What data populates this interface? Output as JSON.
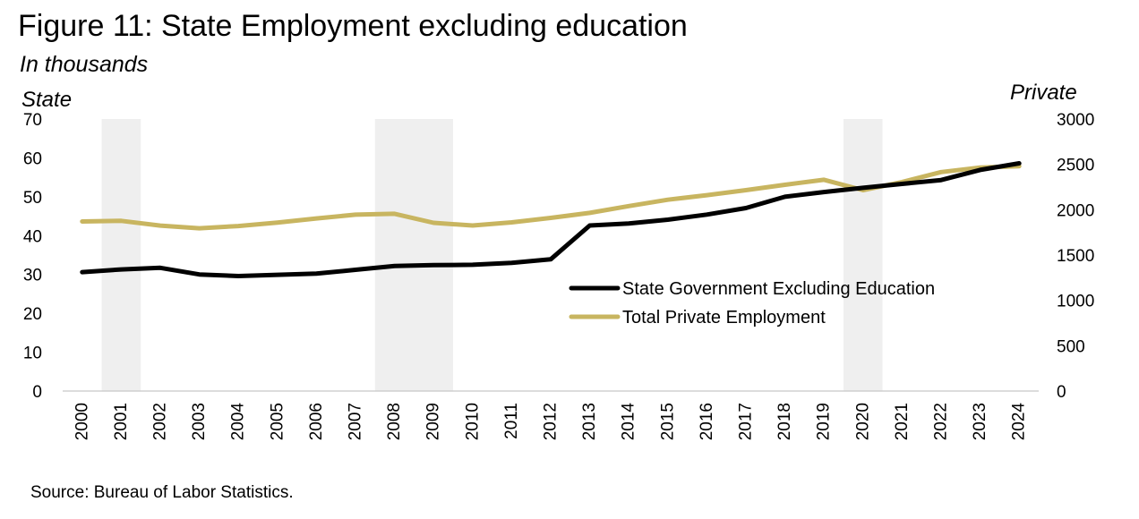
{
  "chart_data": {
    "type": "line",
    "title": "Figure 11: State Employment excluding education",
    "subtitle": "In thousands",
    "y_left_label": "State",
    "y_right_label": "Private",
    "ylim_left": [
      0,
      70
    ],
    "ylim_right": [
      0,
      3000
    ],
    "yticks_left": [
      "0",
      "10",
      "20",
      "30",
      "40",
      "50",
      "60",
      "70"
    ],
    "yticks_right": [
      "0",
      "500",
      "1000",
      "1500",
      "2000",
      "2500",
      "3000"
    ],
    "x": [
      "2000",
      "2001",
      "2002",
      "2003",
      "2004",
      "2005",
      "2006",
      "2007",
      "2008",
      "2009",
      "2010",
      "2011",
      "2012",
      "2013",
      "2014",
      "2015",
      "2016",
      "2017",
      "2018",
      "2019",
      "2020",
      "2021",
      "2022",
      "2023",
      "2024"
    ],
    "recession_bands": [
      [
        "2000.5",
        "2001.5"
      ],
      [
        "2007.5",
        "2009.5"
      ],
      [
        "2019.5",
        "2020.5"
      ]
    ],
    "series": [
      {
        "name": "State Government Excluding Education",
        "axis": "left",
        "color": "#000000",
        "values": [
          30.6,
          31.3,
          31.7,
          30.0,
          29.6,
          29.9,
          30.2,
          31.2,
          32.2,
          32.4,
          32.5,
          33.0,
          33.9,
          42.6,
          43.1,
          44.1,
          45.4,
          47.1,
          50.0,
          51.2,
          52.3,
          53.3,
          54.3,
          56.9,
          58.6
        ]
      },
      {
        "name": "Total Private Employment",
        "axis": "right",
        "color": "#C8B560",
        "values": [
          1870,
          1877,
          1825,
          1795,
          1820,
          1858,
          1904,
          1945,
          1955,
          1855,
          1826,
          1860,
          1910,
          1965,
          2040,
          2110,
          2160,
          2215,
          2275,
          2330,
          2215,
          2305,
          2415,
          2465,
          2480
        ]
      }
    ],
    "legend_position": "center-right",
    "grid": false
  },
  "source": "Source: Bureau of Labor Statistics."
}
